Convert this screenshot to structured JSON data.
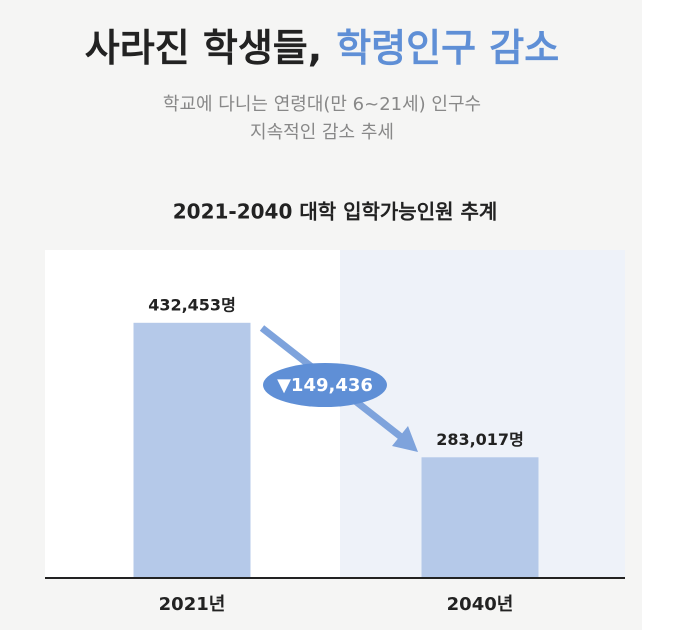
{
  "chart_data": {
    "type": "bar",
    "title": "사라진 학생들,",
    "title_highlight": "학령인구 감소",
    "subtitle": [
      "학교에 다니는 연령대(만 6~21세) 인구수",
      "지속적인 감소 추세"
    ],
    "chart_title": "2021-2040 대학 입학가능인원 추계",
    "categories": [
      "2021년",
      "2040년"
    ],
    "values": [
      432453,
      283017
    ],
    "value_labels": [
      "432,453명",
      "283,017명"
    ],
    "annotation": "▼149,436",
    "color": "#b5c9e9",
    "highlight_color": "#5f8fd6",
    "ylim": [
      150000,
      450000
    ]
  }
}
